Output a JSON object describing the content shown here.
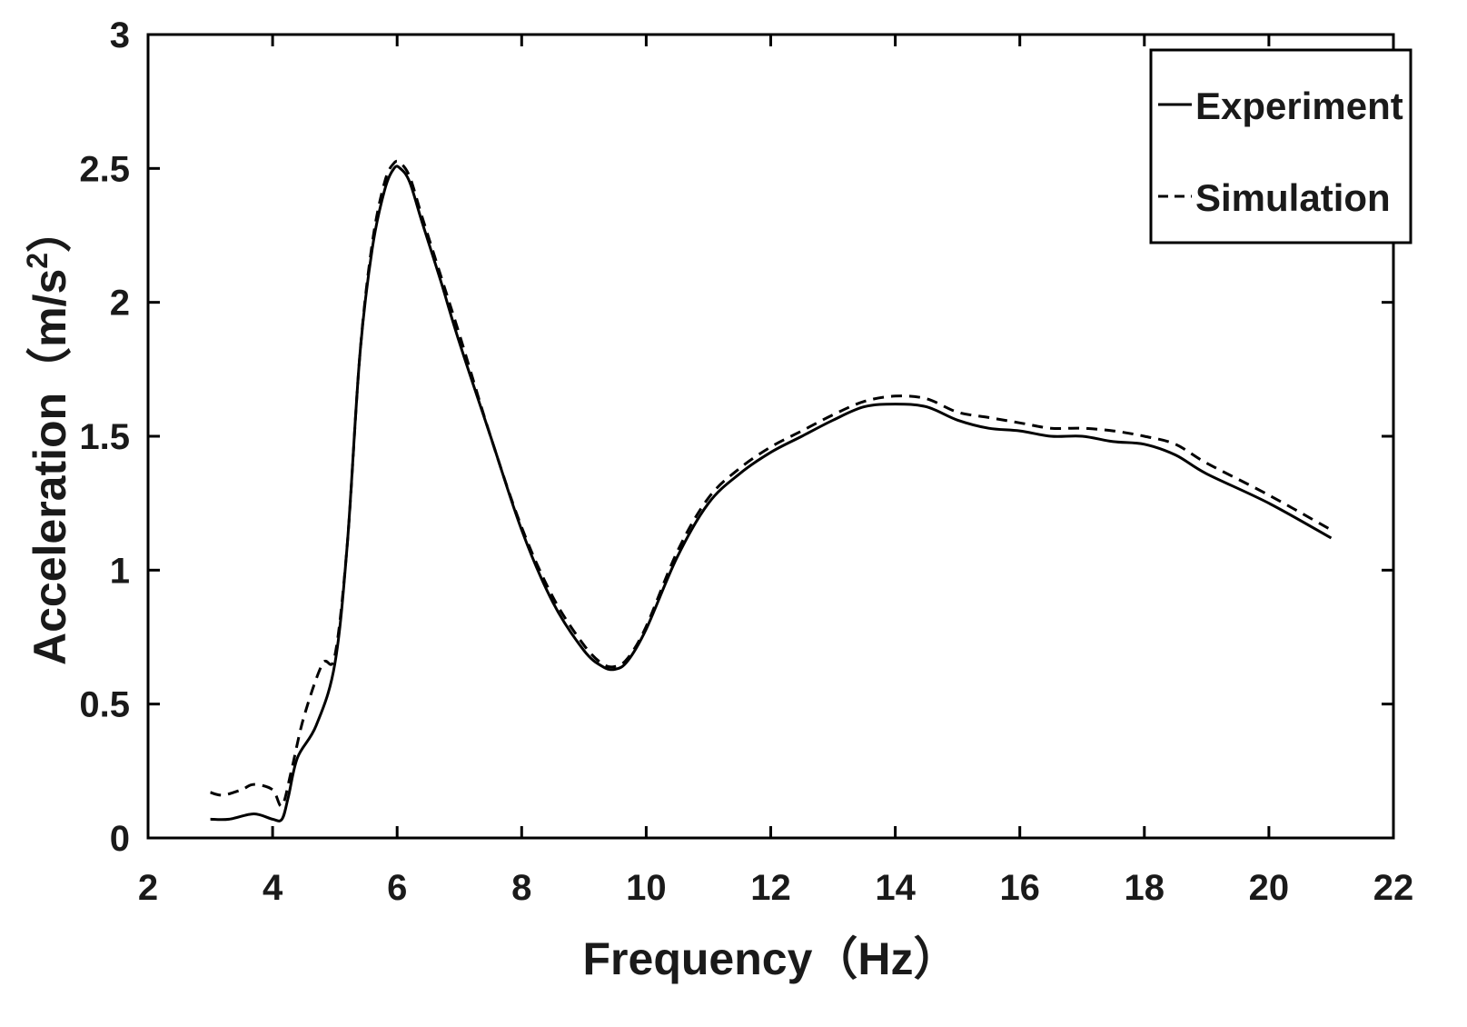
{
  "chart_data": {
    "type": "line",
    "title": "",
    "xlabel": "Frequency（Hz）",
    "ylabel_main": "Acceleration（m/s",
    "ylabel_sup": "2",
    "ylabel_close": "）",
    "xlim": [
      2,
      22
    ],
    "ylim": [
      0,
      3
    ],
    "xticks": [
      2,
      4,
      6,
      8,
      10,
      12,
      14,
      16,
      18,
      20,
      22
    ],
    "yticks": [
      0,
      0.5,
      1,
      1.5,
      2,
      2.5,
      3
    ],
    "ytick_labels": [
      "0",
      "0.5",
      "1",
      "1.5",
      "2",
      "2.5",
      "3"
    ],
    "legend_position": "top-right",
    "grid": false,
    "series": [
      {
        "name": "Experiment",
        "style": "solid",
        "color": "#000000",
        "x": [
          3.0,
          3.3,
          3.7,
          4.0,
          4.15,
          4.25,
          4.4,
          4.7,
          5.0,
          5.2,
          5.4,
          5.6,
          5.8,
          5.95,
          6.05,
          6.2,
          6.4,
          6.7,
          7.0,
          7.5,
          8.0,
          8.5,
          9.0,
          9.3,
          9.5,
          9.7,
          10.0,
          10.5,
          11.0,
          11.5,
          12.0,
          12.5,
          13.0,
          13.5,
          14.0,
          14.5,
          15.0,
          15.5,
          16.0,
          16.5,
          17.0,
          17.5,
          18.0,
          18.5,
          19.0,
          20.0,
          21.0
        ],
        "y": [
          0.07,
          0.07,
          0.09,
          0.07,
          0.07,
          0.15,
          0.3,
          0.42,
          0.65,
          1.1,
          1.8,
          2.2,
          2.42,
          2.5,
          2.5,
          2.45,
          2.3,
          2.08,
          1.85,
          1.5,
          1.15,
          0.88,
          0.7,
          0.64,
          0.63,
          0.66,
          0.78,
          1.05,
          1.25,
          1.36,
          1.44,
          1.5,
          1.56,
          1.61,
          1.62,
          1.61,
          1.56,
          1.53,
          1.52,
          1.5,
          1.5,
          1.48,
          1.47,
          1.43,
          1.36,
          1.25,
          1.12
        ]
      },
      {
        "name": "Simulation",
        "style": "dashed",
        "color": "#000000",
        "x": [
          3.0,
          3.2,
          3.5,
          3.7,
          4.0,
          4.15,
          4.3,
          4.5,
          4.8,
          5.0,
          5.2,
          5.4,
          5.6,
          5.8,
          5.95,
          6.05,
          6.2,
          6.4,
          6.7,
          7.0,
          7.5,
          8.0,
          8.5,
          9.0,
          9.3,
          9.5,
          9.7,
          10.0,
          10.5,
          11.0,
          11.5,
          12.0,
          12.5,
          13.0,
          13.5,
          14.0,
          14.5,
          15.0,
          15.5,
          16.0,
          16.5,
          17.0,
          17.5,
          18.0,
          18.5,
          19.0,
          20.0,
          21.0
        ],
        "y": [
          0.17,
          0.16,
          0.18,
          0.2,
          0.18,
          0.12,
          0.25,
          0.45,
          0.65,
          0.68,
          1.1,
          1.8,
          2.22,
          2.45,
          2.52,
          2.52,
          2.47,
          2.32,
          2.1,
          1.88,
          1.5,
          1.16,
          0.9,
          0.72,
          0.65,
          0.64,
          0.67,
          0.79,
          1.07,
          1.27,
          1.38,
          1.46,
          1.52,
          1.58,
          1.63,
          1.65,
          1.64,
          1.59,
          1.57,
          1.55,
          1.53,
          1.53,
          1.52,
          1.5,
          1.47,
          1.4,
          1.28,
          1.15
        ]
      }
    ]
  }
}
